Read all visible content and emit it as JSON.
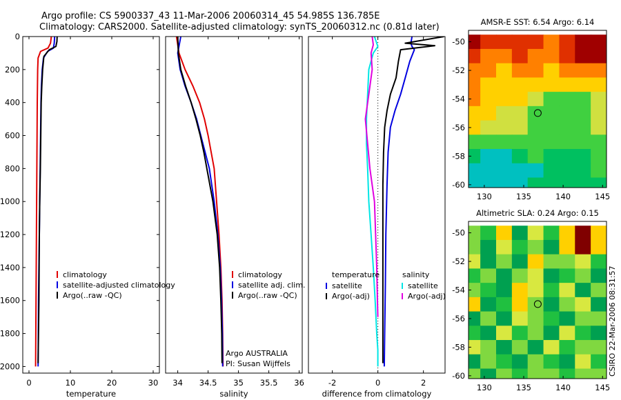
{
  "header": {
    "title_line1": "Argo profile: CS 5900337_43 11-Mar-2006 20060314_45 54.985S 136.785E",
    "title_line2": "Climatology: CARS2000. Satellite-adjusted climatology: synTS_20060312.nc (0.81d later)"
  },
  "footer": {
    "credit": "CSIRO 22-Mar-2006 08:31:57",
    "argo_country": "Argo AUSTRALIA",
    "pi": "PI: Susan Wijffels"
  },
  "colors": {
    "climatology": "#e00000",
    "satellite": "#0000e0",
    "argo": "#000000",
    "salinity_satellite": "#00e5e5",
    "salinity_argo": "#e000e0"
  },
  "chart_data": [
    {
      "type": "line",
      "xlabel": "temperature",
      "ylabel": "",
      "xlim": [
        -1.5,
        31.5
      ],
      "ylim": [
        0,
        2040
      ],
      "y_reversed": true,
      "xticks": [
        0,
        10,
        20,
        30
      ],
      "yticks": [
        0,
        200,
        400,
        600,
        800,
        1000,
        1200,
        1400,
        1600,
        1800,
        2000
      ],
      "legend": {
        "position": "lower-right",
        "entries": [
          "climatology",
          "satellite-adjusted climatology",
          "Argo(..raw -QC)"
        ]
      },
      "series": [
        {
          "name": "climatology",
          "color_key": "climatology",
          "x": [
            5.4,
            5.2,
            4.6,
            2.8,
            2.2,
            2.1,
            2.05,
            2.0,
            1.95,
            1.9,
            1.85,
            1.8,
            1.75,
            1.7,
            1.65,
            1.6
          ],
          "y": [
            0,
            40,
            70,
            90,
            130,
            200,
            300,
            400,
            600,
            800,
            1000,
            1200,
            1400,
            1600,
            1800,
            2000
          ]
        },
        {
          "name": "satellite-adjusted climatology",
          "color_key": "satellite",
          "x": [
            6.2,
            6.1,
            5.9,
            4.5,
            3.5,
            3.2,
            3.0,
            2.9,
            2.8,
            2.7,
            2.6,
            2.5,
            2.4,
            2.3,
            2.25,
            2.2
          ],
          "y": [
            0,
            40,
            70,
            90,
            130,
            200,
            300,
            400,
            600,
            800,
            1000,
            1200,
            1400,
            1600,
            1800,
            2000
          ]
        },
        {
          "name": "Argo(..raw -QC)",
          "color_key": "argo",
          "x": [
            6.8,
            6.75,
            6.5,
            4.9,
            3.6,
            3.3,
            3.1,
            2.95,
            2.85,
            2.75,
            2.6,
            2.5,
            2.45,
            2.4,
            2.3,
            2.2
          ],
          "y": [
            0,
            30,
            60,
            80,
            120,
            200,
            300,
            400,
            600,
            800,
            1000,
            1200,
            1400,
            1600,
            1800,
            1980
          ]
        }
      ]
    },
    {
      "type": "line",
      "xlabel": "salinity",
      "ylabel": "",
      "xlim": [
        33.8,
        36.05
      ],
      "ylim": [
        0,
        2040
      ],
      "y_reversed": true,
      "xticks": [
        34,
        34.5,
        35,
        35.5,
        36
      ],
      "yticks": [],
      "legend": {
        "position": "lower-right",
        "entries": [
          "climatology",
          "satellite adj. clim.",
          "Argo(..raw -QC)"
        ]
      },
      "series": [
        {
          "name": "climatology",
          "color_key": "climatology",
          "x": [
            33.98,
            34.02,
            34.12,
            34.25,
            34.36,
            34.44,
            34.5,
            34.55,
            34.6,
            34.64,
            34.68,
            34.71,
            34.73,
            34.74,
            34.745
          ],
          "y": [
            0,
            100,
            200,
            300,
            400,
            500,
            600,
            700,
            800,
            1000,
            1200,
            1400,
            1600,
            1800,
            2000
          ]
        },
        {
          "name": "satellite adj. clim.",
          "color_key": "satellite",
          "x": [
            34.05,
            34.0,
            34.04,
            34.12,
            34.22,
            34.31,
            34.38,
            34.45,
            34.52,
            34.6,
            34.66,
            34.7,
            34.72,
            34.735,
            34.74
          ],
          "y": [
            0,
            100,
            200,
            300,
            400,
            500,
            600,
            700,
            800,
            1000,
            1200,
            1400,
            1600,
            1800,
            2000
          ]
        },
        {
          "name": "Argo(..raw -QC)",
          "color_key": "argo",
          "x": [
            34.0,
            34.01,
            34.05,
            34.13,
            34.22,
            34.3,
            34.37,
            34.43,
            34.48,
            34.58,
            34.65,
            34.69,
            34.71,
            34.725,
            34.73
          ],
          "y": [
            0,
            100,
            200,
            300,
            400,
            500,
            600,
            700,
            800,
            1000,
            1200,
            1400,
            1600,
            1800,
            1980
          ]
        }
      ]
    },
    {
      "type": "line",
      "xlabel": "difference from climatology",
      "ylabel": "",
      "xlim": [
        -3.05,
        2.95
      ],
      "ylim": [
        0,
        2040
      ],
      "y_reversed": true,
      "xticks": [
        -2,
        0,
        2
      ],
      "yticks": [],
      "zero_line": true,
      "legend": {
        "position": "lower-right",
        "groups": [
          {
            "heading": "temperature",
            "entries": [
              "satellite",
              "Argo(-adj)"
            ]
          },
          {
            "heading": "salinity",
            "entries": [
              "satellite",
              "Argo(-adj)"
            ]
          }
        ]
      },
      "series": [
        {
          "name": "satellite",
          "group": "temperature",
          "color_key": "satellite",
          "x": [
            1.5,
            1.45,
            1.5,
            1.6,
            1.4,
            1.2,
            1.0,
            0.75,
            0.55,
            0.45,
            0.4,
            0.35,
            0.33,
            0.3,
            0.28
          ],
          "y": [
            0,
            40,
            60,
            80,
            150,
            250,
            350,
            450,
            550,
            700,
            900,
            1200,
            1500,
            1800,
            2000
          ]
        },
        {
          "name": "Argo(-adj)",
          "group": "temperature",
          "color_key": "argo",
          "x": [
            2.9,
            1.2,
            2.5,
            1.0,
            0.9,
            0.8,
            0.55,
            0.4,
            0.3,
            0.25,
            0.22,
            0.22,
            0.22,
            0.22,
            0.22
          ],
          "y": [
            0,
            40,
            55,
            80,
            150,
            250,
            350,
            450,
            550,
            700,
            900,
            1200,
            1500,
            1800,
            1980
          ]
        },
        {
          "name": "satellite",
          "group": "salinity",
          "color_key": "salinity_satellite",
          "x": [
            -0.15,
            0.0,
            -0.2,
            -0.4,
            -0.45,
            -0.5,
            -0.5,
            -0.45,
            -0.4,
            -0.3,
            -0.2,
            -0.12,
            -0.05,
            0.0,
            0.0
          ],
          "y": [
            0,
            60,
            100,
            200,
            350,
            500,
            650,
            800,
            1000,
            1200,
            1400,
            1600,
            1800,
            1900,
            2000
          ]
        },
        {
          "name": "Argo(-adj)",
          "group": "salinity",
          "color_key": "salinity_argo",
          "x": [
            -0.25,
            -0.2,
            -0.3,
            -0.25,
            -0.4,
            -0.55,
            -0.45,
            -0.35,
            -0.15,
            -0.1,
            -0.05,
            -0.02,
            0.0
          ],
          "y": [
            0,
            50,
            100,
            200,
            350,
            500,
            650,
            800,
            1000,
            1200,
            1400,
            1600,
            1700
          ]
        }
      ]
    },
    {
      "type": "heatmap",
      "title": "AMSR-E SST: 6.54 Argo: 6.14",
      "xlim": [
        128,
        145.5
      ],
      "ylim": [
        -60.2,
        -49.2
      ],
      "xticks": [
        130,
        135,
        140,
        145
      ],
      "yticks": [
        -50,
        -52,
        -54,
        -56,
        -58,
        -60
      ],
      "marker": {
        "lon": 136.785,
        "lat": -54.985
      },
      "colorscale": [
        "#00c0c0",
        "#00c060",
        "#40d040",
        "#d0e040",
        "#ffd000",
        "#ff8000",
        "#e03000",
        "#a00000"
      ],
      "grid": {
        "rows": [
          -50,
          -51,
          -52,
          -53,
          -54,
          -55,
          -56,
          -57,
          -58,
          -59,
          -60
        ],
        "cols": [
          128.5,
          130.5,
          132.5,
          134.5,
          136.5,
          138.5,
          140.5,
          142.5,
          144.5
        ],
        "values": [
          [
            7.6,
            6.4,
            6.2,
            6.6,
            6.2,
            6.1,
            6.7,
            7.9,
            8.0
          ],
          [
            6.9,
            6.1,
            6.0,
            6.2,
            5.9,
            5.8,
            6.5,
            7.2,
            7.5
          ],
          [
            6.0,
            5.6,
            5.2,
            5.5,
            5.3,
            5.2,
            5.6,
            5.8,
            5.7
          ],
          [
            5.5,
            5.2,
            4.8,
            5.0,
            4.6,
            4.4,
            4.6,
            5.0,
            5.2
          ],
          [
            5.3,
            5.0,
            4.7,
            4.4,
            3.6,
            3.2,
            3.3,
            3.4,
            3.6
          ],
          [
            5.0,
            4.6,
            4.3,
            4.0,
            3.3,
            3.0,
            3.0,
            3.2,
            3.5
          ],
          [
            4.7,
            4.2,
            3.9,
            3.6,
            3.1,
            2.8,
            2.9,
            3.3,
            3.6
          ],
          [
            3.4,
            2.9,
            3.3,
            3.1,
            3.0,
            2.8,
            2.6,
            2.9,
            3.4
          ],
          [
            2.4,
            1.6,
            1.3,
            1.9,
            2.6,
            2.5,
            2.1,
            2.4,
            2.9
          ],
          [
            1.4,
            1.0,
            0.8,
            1.2,
            1.6,
            2.3,
            2.0,
            2.1,
            2.6
          ],
          [
            1.4,
            1.1,
            0.9,
            1.4,
            1.8,
            2.4,
            2.1,
            2.2,
            2.5
          ]
        ]
      }
    },
    {
      "type": "heatmap",
      "title": "Altimetric SLA: 0.24 Argo: 0.15",
      "xlim": [
        128,
        145.5
      ],
      "ylim": [
        -60.2,
        -49.2
      ],
      "xticks": [
        130,
        135,
        140,
        145
      ],
      "yticks": [
        -50,
        -52,
        -54,
        -56,
        -58,
        -60
      ],
      "marker": {
        "lon": 136.785,
        "lat": -54.985
      },
      "colorscale": [
        "#00a050",
        "#20c040",
        "#80d840",
        "#d8e840",
        "#ffd000",
        "#f08000",
        "#c03000",
        "#800000"
      ],
      "grid": {
        "rows": [
          -50,
          -51,
          -52,
          -53,
          -54,
          -55,
          -56,
          -57,
          -58,
          -59,
          -60
        ],
        "cols": [
          128.5,
          130.5,
          132.5,
          134.5,
          136.5,
          138.5,
          140.5,
          142.5,
          144.5
        ],
        "values": [
          [
            3.0,
            2.0,
            4.0,
            1.5,
            3.5,
            2.0,
            4.0,
            6.5,
            4.0
          ],
          [
            2.5,
            1.0,
            3.5,
            2.0,
            3.0,
            1.5,
            4.5,
            7.0,
            4.5
          ],
          [
            3.5,
            1.5,
            2.5,
            1.0,
            4.0,
            2.5,
            3.0,
            3.5,
            2.0
          ],
          [
            2.0,
            3.0,
            1.0,
            2.5,
            3.5,
            1.0,
            2.0,
            2.5,
            1.5
          ],
          [
            3.0,
            2.0,
            1.5,
            4.5,
            3.5,
            2.0,
            3.5,
            1.0,
            3.0
          ],
          [
            4.0,
            1.5,
            2.0,
            4.0,
            3.0,
            1.5,
            2.5,
            3.5,
            1.5
          ],
          [
            1.5,
            3.0,
            1.0,
            3.5,
            2.5,
            2.0,
            1.5,
            2.5,
            3.0
          ],
          [
            2.0,
            1.0,
            3.5,
            2.0,
            3.0,
            1.0,
            3.5,
            2.0,
            1.5
          ],
          [
            3.5,
            2.5,
            1.5,
            2.5,
            1.5,
            3.5,
            2.0,
            3.0,
            2.5
          ],
          [
            1.5,
            3.0,
            2.0,
            1.5,
            3.0,
            2.0,
            1.0,
            3.5,
            2.0
          ],
          [
            2.5,
            1.5,
            3.0,
            2.0,
            2.5,
            3.0,
            2.0,
            2.5,
            3.0
          ]
        ]
      }
    }
  ]
}
